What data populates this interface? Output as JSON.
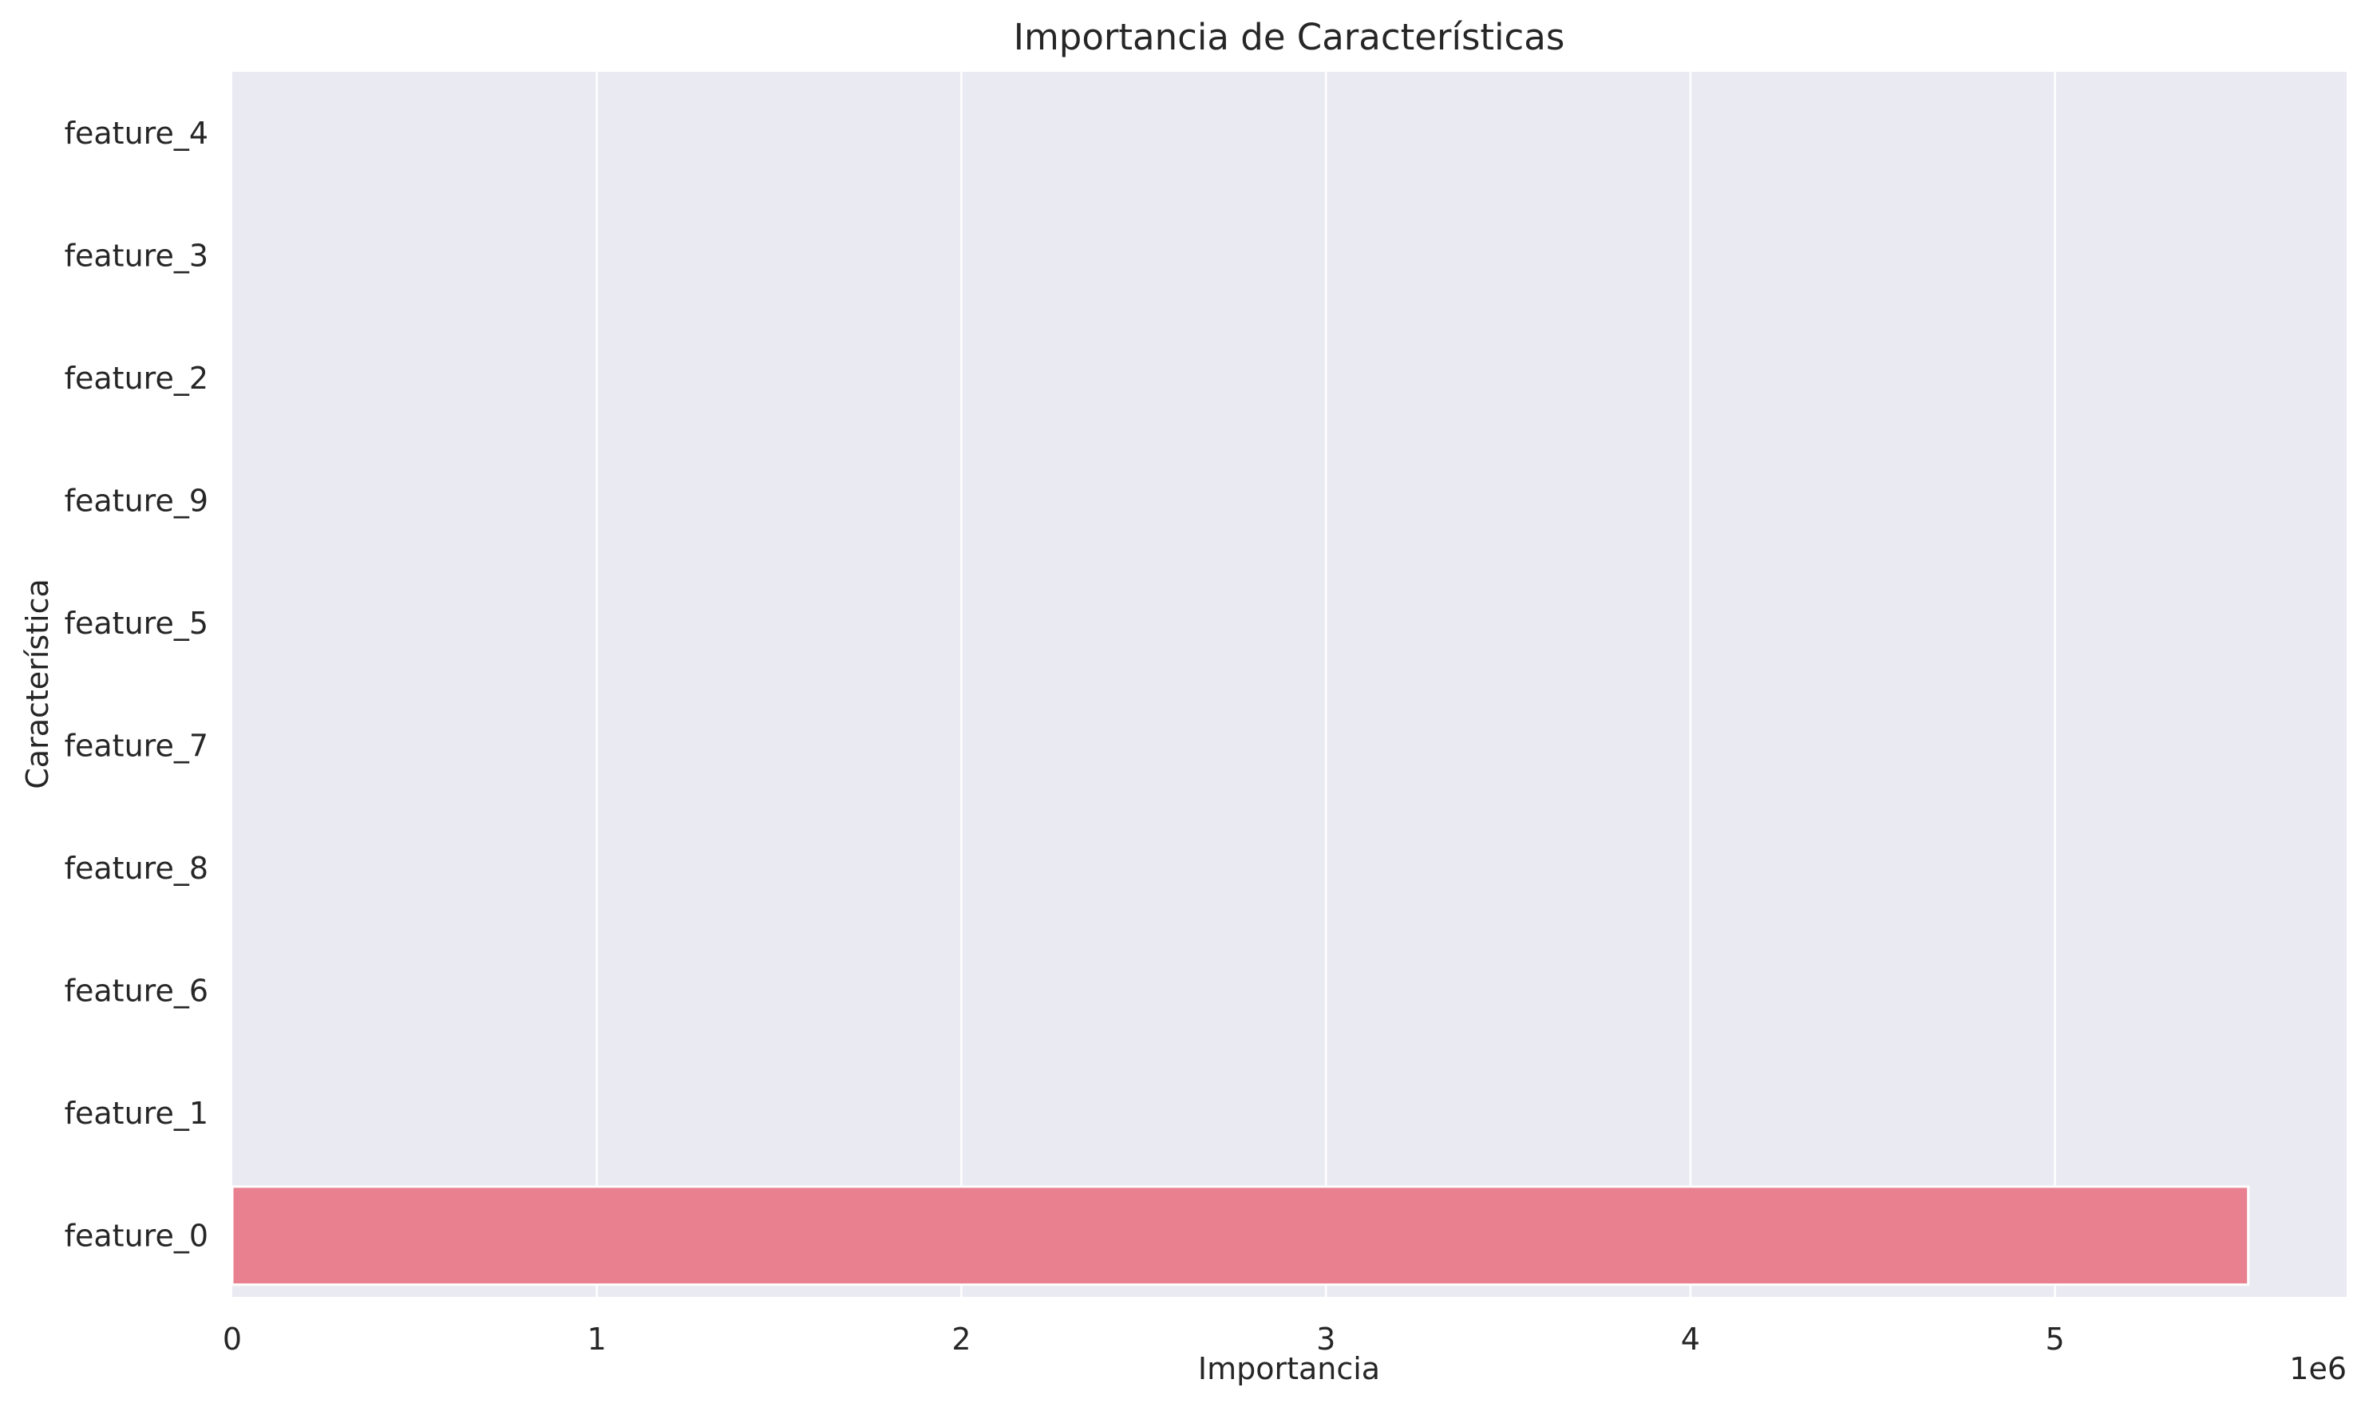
{
  "chart_data": {
    "type": "bar",
    "orientation": "horizontal",
    "title": "Importancia de Características",
    "xlabel": "Importancia",
    "ylabel": "Característica",
    "x_offset_label": "1e6",
    "x_scale": 1000000,
    "xlim": [
      0,
      5800000
    ],
    "x_ticks": [
      0,
      1000000,
      2000000,
      3000000,
      4000000,
      5000000
    ],
    "x_tick_labels": [
      "0",
      "1",
      "2",
      "3",
      "4",
      "5"
    ],
    "categories": [
      "feature_4",
      "feature_3",
      "feature_2",
      "feature_9",
      "feature_5",
      "feature_7",
      "feature_8",
      "feature_6",
      "feature_1",
      "feature_0"
    ],
    "values": [
      0,
      0,
      0,
      0,
      0,
      0,
      0,
      0,
      0,
      5530000
    ],
    "grid": true,
    "grid_axis": "x",
    "background_color": "#eaeaf2",
    "bar_color": "#e8808f"
  }
}
